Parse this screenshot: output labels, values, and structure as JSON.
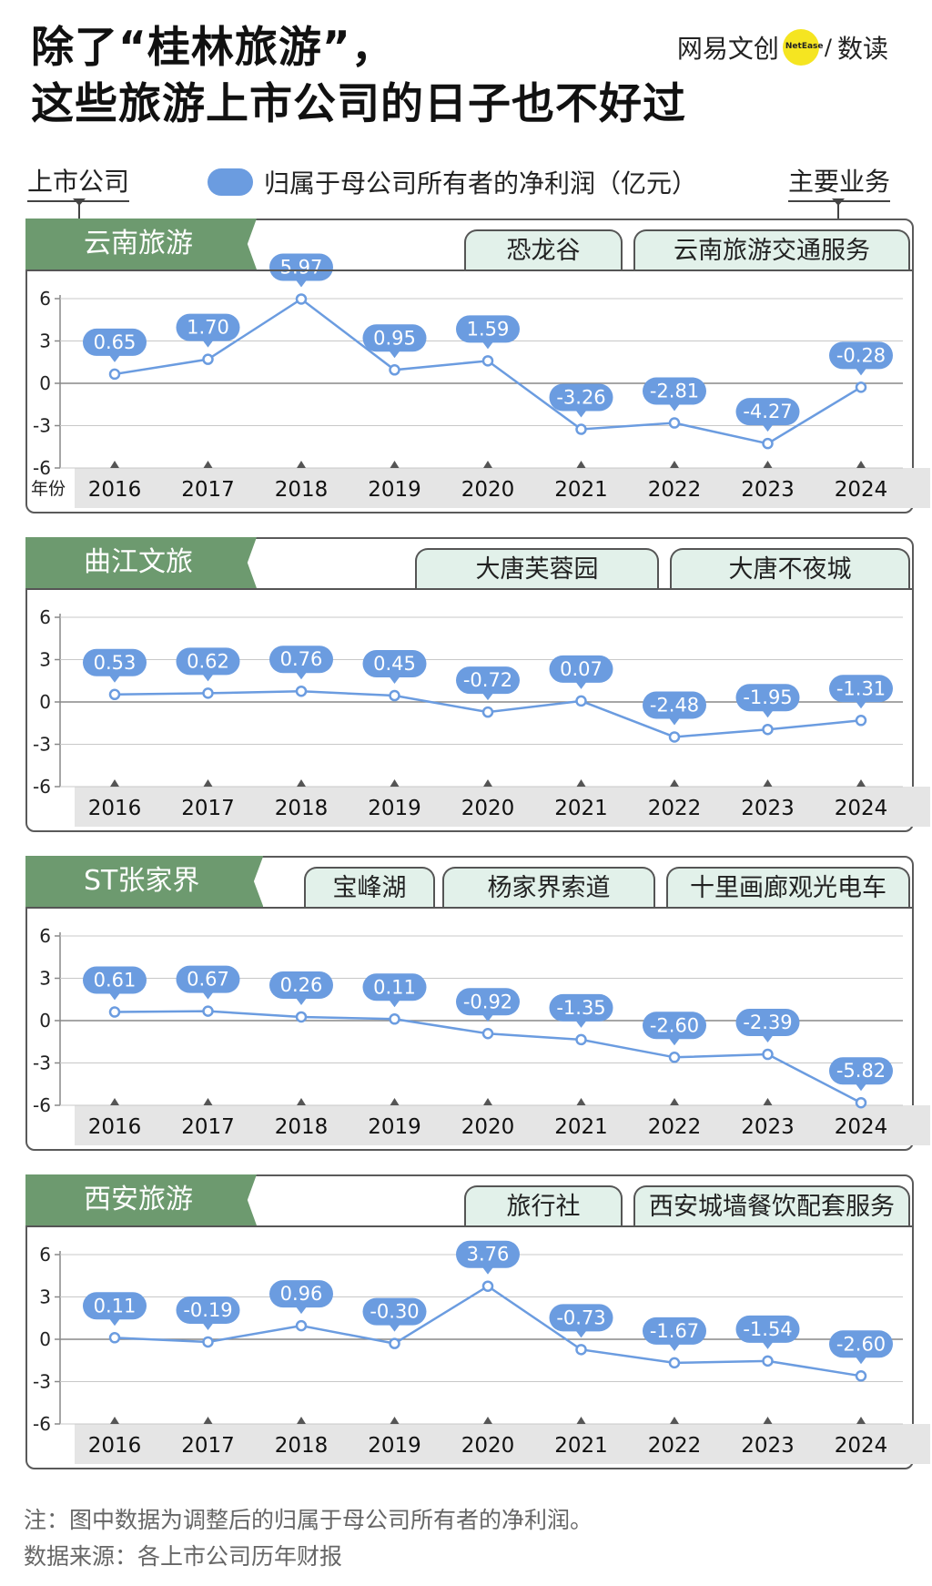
{
  "title": {
    "line1": "除了“桂林旅游”，",
    "line2": "这些旅游上市公司的日子也不好过"
  },
  "brand": {
    "cn": "网易文创",
    "badge": "NetEase",
    "slash": "/",
    "section": "数读"
  },
  "header": {
    "left_label": "上市公司",
    "legend_label": "归属于母公司所有者的净利润（亿元）",
    "right_label": "主要业务"
  },
  "colors": {
    "line": "#6b9ce0",
    "panel_header": "#6d9a6f",
    "tab_fill": "#e2f1ea",
    "grid": "#9a9a9a"
  },
  "year_axis_label": "年份",
  "chart_data": [
    {
      "type": "line",
      "company": "云南旅游",
      "businesses": [
        "恐龙谷",
        "云南旅游交通服务"
      ],
      "categories": [
        "2016",
        "2017",
        "2018",
        "2019",
        "2020",
        "2021",
        "2022",
        "2023",
        "2024"
      ],
      "values": [
        0.65,
        1.7,
        5.97,
        0.95,
        1.59,
        -3.26,
        -2.81,
        -4.27,
        -0.28
      ],
      "labels": [
        "0.65",
        "1.70",
        "5.97",
        "0.95",
        "1.59",
        "-3.26",
        "-2.81",
        "-4.27",
        "-0.28"
      ],
      "yticks": [
        "6",
        "3",
        "0",
        "-3",
        "-6"
      ],
      "ylim": [
        -6,
        6
      ]
    },
    {
      "type": "line",
      "company": "曲江文旅",
      "businesses": [
        "大唐芙蓉园",
        "大唐不夜城"
      ],
      "categories": [
        "2016",
        "2017",
        "2018",
        "2019",
        "2020",
        "2021",
        "2022",
        "2023",
        "2024"
      ],
      "values": [
        0.53,
        0.62,
        0.76,
        0.45,
        -0.72,
        0.07,
        -2.48,
        -1.95,
        -1.31
      ],
      "labels": [
        "0.53",
        "0.62",
        "0.76",
        "0.45",
        "-0.72",
        "0.07",
        "-2.48",
        "-1.95",
        "-1.31"
      ],
      "yticks": [
        "6",
        "3",
        "0",
        "-3",
        "-6"
      ],
      "ylim": [
        -6,
        6
      ]
    },
    {
      "type": "line",
      "company": "ST张家界",
      "businesses": [
        "宝峰湖",
        "杨家界索道",
        "十里画廊观光电车"
      ],
      "categories": [
        "2016",
        "2017",
        "2018",
        "2019",
        "2020",
        "2021",
        "2022",
        "2023",
        "2024"
      ],
      "values": [
        0.61,
        0.67,
        0.26,
        0.11,
        -0.92,
        -1.35,
        -2.6,
        -2.39,
        -5.82
      ],
      "labels": [
        "0.61",
        "0.67",
        "0.26",
        "0.11",
        "-0.92",
        "-1.35",
        "-2.60",
        "-2.39",
        "-5.82"
      ],
      "yticks": [
        "6",
        "3",
        "0",
        "-3",
        "-6"
      ],
      "ylim": [
        -6,
        6
      ]
    },
    {
      "type": "line",
      "company": "西安旅游",
      "businesses": [
        "旅行社",
        "西安城墙餐饮配套服务"
      ],
      "categories": [
        "2016",
        "2017",
        "2018",
        "2019",
        "2020",
        "2021",
        "2022",
        "2023",
        "2024"
      ],
      "values": [
        0.11,
        -0.19,
        0.96,
        -0.3,
        3.76,
        -0.73,
        -1.67,
        -1.54,
        -2.6
      ],
      "labels": [
        "0.11",
        "-0.19",
        "0.96",
        "-0.30",
        "3.76",
        "-0.73",
        "-1.67",
        "-1.54",
        "-2.60"
      ],
      "yticks": [
        "6",
        "3",
        "0",
        "-3",
        "-6"
      ],
      "ylim": [
        -6,
        6
      ]
    }
  ],
  "footnotes": {
    "note": "注：图中数据为调整后的归属于母公司所有者的净利润。",
    "source": "数据来源：各上市公司历年财报"
  }
}
